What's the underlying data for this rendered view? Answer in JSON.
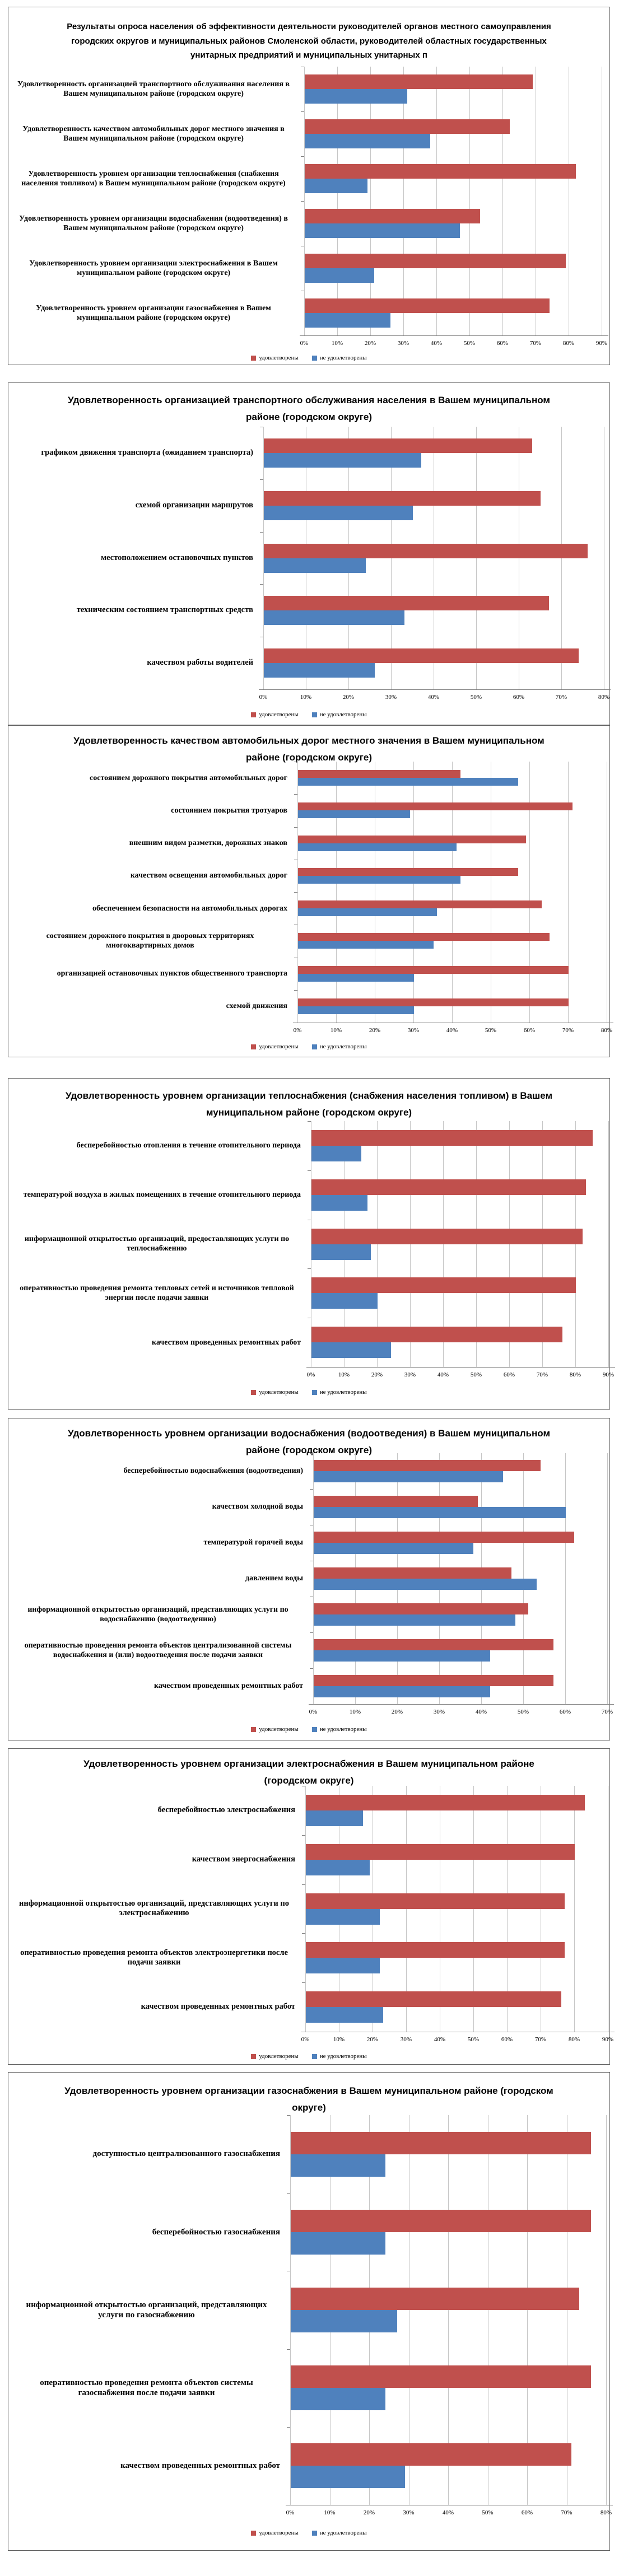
{
  "header": {
    "text": "Результаты опроса населения об эффективности деятельности руководителей органов местного самоуправления городских округов и муниципальных районов Смоленской области, руководителей областных государственных унитарных предприятий и муниципальных унитарных п"
  },
  "legend": {
    "satisfied": "удовлетворены",
    "not_satisfied": "не удовлетворены"
  },
  "colors": {
    "satisfied": "#C0504D",
    "not_satisfied": "#4F81BD",
    "grid": "#C6C6C6",
    "axis": "#7F7F7F",
    "panel_border": "#5F5F5F"
  },
  "chart_data": [
    {
      "type": "bar",
      "orientation": "horizontal",
      "grid": true,
      "legend_position": "bottom",
      "title": "",
      "categories": [
        "Удовлетворенность организацией транспортного обслуживания населения в Вашем муниципальном районе (городском округе)",
        "Удовлетворенность качеством автомобильных дорог местного значения в Вашем муниципальном районе (городском округе)",
        "Удовлетворенность уровнем организации теплоснабжения (снабжения населения топливом) в Вашем муниципальном районе (городском округе)",
        "Удовлетворенность уровнем организации водоснабжения (водоотведения) в Вашем муниципальном районе (городском округе)",
        "Удовлетворенность уровнем организации электроснабжения в Вашем муниципальном районе (городском округе)",
        "Удовлетворенность уровнем организации газоснабжения в Вашем муниципальном районе (городском округе)"
      ],
      "series": [
        {
          "name": "удовлетворены",
          "values": [
            69,
            62,
            82,
            53,
            79,
            74
          ]
        },
        {
          "name": "не удовлетворены",
          "values": [
            31,
            38,
            19,
            47,
            21,
            26
          ]
        }
      ],
      "xlim": [
        0,
        90
      ],
      "tick_step": 10,
      "ticks": [
        "0%",
        "10%",
        "20%",
        "30%",
        "40%",
        "50%",
        "60%",
        "70%",
        "80%",
        "90%"
      ]
    },
    {
      "type": "bar",
      "orientation": "horizontal",
      "grid": true,
      "legend_position": "bottom",
      "title": "Удовлетворенность организацией транспортного обслуживания населения в Вашем муниципальном районе (городском округе)",
      "categories": [
        "графиком движения транспорта (ожиданием транспорта)",
        "схемой организации маршрутов",
        "местоположением остановочных пунктов",
        "техническим состоянием транспортных средств",
        "качеством работы водителей"
      ],
      "series": [
        {
          "name": "удовлетворены",
          "values": [
            63,
            65,
            76,
            67,
            74
          ]
        },
        {
          "name": "не удовлетворены",
          "values": [
            37,
            35,
            24,
            33,
            26
          ]
        }
      ],
      "xlim": [
        0,
        80
      ],
      "tick_step": 10,
      "ticks": [
        "0%",
        "10%",
        "20%",
        "30%",
        "40%",
        "50%",
        "60%",
        "70%",
        "80%"
      ]
    },
    {
      "type": "bar",
      "orientation": "horizontal",
      "grid": true,
      "legend_position": "bottom",
      "title": "Удовлетворенность качеством автомобильных дорог местного значения в Вашем муниципальном районе (городском округе)",
      "categories": [
        "состоянием дорожного покрытия автомобильных дорог",
        "состоянием покрытия тротуаров",
        "внешним видом разметки, дорожных знаков",
        "качеством освещения автомобильных дорог",
        "обеспечением безопасности на автомобильных дорогах",
        "состоянием дорожного покрытия в дворовых территориях многоквартирных домов",
        "организацией остановочных пунктов общественного транспорта",
        "схемой движения"
      ],
      "series": [
        {
          "name": "удовлетворены",
          "values": [
            42,
            71,
            59,
            57,
            63,
            65,
            70,
            70
          ]
        },
        {
          "name": "не удовлетворены",
          "values": [
            57,
            29,
            41,
            42,
            36,
            35,
            30,
            30
          ]
        }
      ],
      "xlim": [
        0,
        80
      ],
      "tick_step": 10,
      "ticks": [
        "0%",
        "10%",
        "20%",
        "30%",
        "40%",
        "50%",
        "60%",
        "70%",
        "80%"
      ]
    },
    {
      "type": "bar",
      "orientation": "horizontal",
      "grid": true,
      "legend_position": "bottom",
      "title": "Удовлетворенность уровнем организации теплоснабжения (снабжения населения топливом) в Вашем муниципальном районе (городском округе)",
      "categories": [
        "бесперебойностью отопления в течение отопительного периода",
        "температурой воздуха в жилых помещениях в течение отопительного периода",
        "информационной открытостью организаций, предоставляющих услуги по теплоснабжению",
        "оперативностью проведения ремонта тепловых сетей и источников тепловой энергии после подачи заявки",
        "качеством проведенных ремонтных работ"
      ],
      "series": [
        {
          "name": "удовлетворены",
          "values": [
            85,
            83,
            82,
            80,
            76
          ]
        },
        {
          "name": "не удовлетворены",
          "values": [
            15,
            17,
            18,
            20,
            24
          ]
        }
      ],
      "xlim": [
        0,
        90
      ],
      "tick_step": 10,
      "ticks": [
        "0%",
        "10%",
        "20%",
        "30%",
        "40%",
        "50%",
        "60%",
        "70%",
        "80%",
        "90%"
      ]
    },
    {
      "type": "bar",
      "orientation": "horizontal",
      "grid": true,
      "legend_position": "bottom",
      "title": "Удовлетворенность уровнем организации водоснабжения (водоотведения) в Вашем муниципальном районе (городском округе)",
      "categories": [
        "бесперебойностью водоснабжения (водоотведения)",
        "качеством холодной воды",
        "температурой горячей воды",
        "давлением воды",
        "информационной открытостью организаций, представляющих услуги по водоснабжению (водоотведению)",
        "оперативностью проведения ремонта объектов централизованной системы водоснабжения и (или) водоотведения после подачи заявки",
        "качеством проведенных ремонтных работ"
      ],
      "series": [
        {
          "name": "удовлетворены",
          "values": [
            54,
            39,
            62,
            47,
            51,
            57,
            57
          ]
        },
        {
          "name": "не удовлетворены",
          "values": [
            45,
            60,
            38,
            53,
            48,
            42,
            42
          ]
        }
      ],
      "xlim": [
        0,
        70
      ],
      "tick_step": 10,
      "ticks": [
        "0%",
        "10%",
        "20%",
        "30%",
        "40%",
        "50%",
        "60%",
        "70%"
      ]
    },
    {
      "type": "bar",
      "orientation": "horizontal",
      "grid": true,
      "legend_position": "bottom",
      "title": "Удовлетворенность уровнем организации электроснабжения в Вашем муниципальном районе (городском округе)",
      "categories": [
        "бесперебойностью электроснабжения",
        "качеством энергоснабжения",
        "информационной открытостью организаций, представляющих услуги по электроснабжению",
        "оперативностью проведения ремонта объектов электроэнергетики после подачи заявки",
        "качеством проведенных ремонтных работ"
      ],
      "series": [
        {
          "name": "удовлетворены",
          "values": [
            83,
            80,
            77,
            77,
            76
          ]
        },
        {
          "name": "не удовлетворены",
          "values": [
            17,
            19,
            22,
            22,
            23
          ]
        }
      ],
      "xlim": [
        0,
        90
      ],
      "tick_step": 10,
      "ticks": [
        "0%",
        "10%",
        "20%",
        "30%",
        "40%",
        "50%",
        "60%",
        "70%",
        "80%",
        "90%"
      ]
    },
    {
      "type": "bar",
      "orientation": "horizontal",
      "grid": true,
      "legend_position": "bottom",
      "title": "Удовлетворенность уровнем организации газоснабжения в Вашем муниципальном районе (городском округе)",
      "categories": [
        "доступностью централизованного газоснабжения",
        "бесперебойностью газоснабжения",
        "информационной открытостью организаций, представляющих услуги по газоснабжению",
        "оперативностью проведения ремонта объектов системы газоснабжения после подачи заявки",
        "качеством проведенных ремонтных работ"
      ],
      "series": [
        {
          "name": "удовлетворены",
          "values": [
            76,
            76,
            73,
            76,
            71
          ]
        },
        {
          "name": "не удовлетворены",
          "values": [
            24,
            24,
            27,
            24,
            29
          ]
        }
      ],
      "xlim": [
        0,
        80
      ],
      "tick_step": 10,
      "ticks": [
        "0%",
        "10%",
        "20%",
        "30%",
        "40%",
        "50%",
        "60%",
        "70%",
        "80%"
      ]
    }
  ]
}
